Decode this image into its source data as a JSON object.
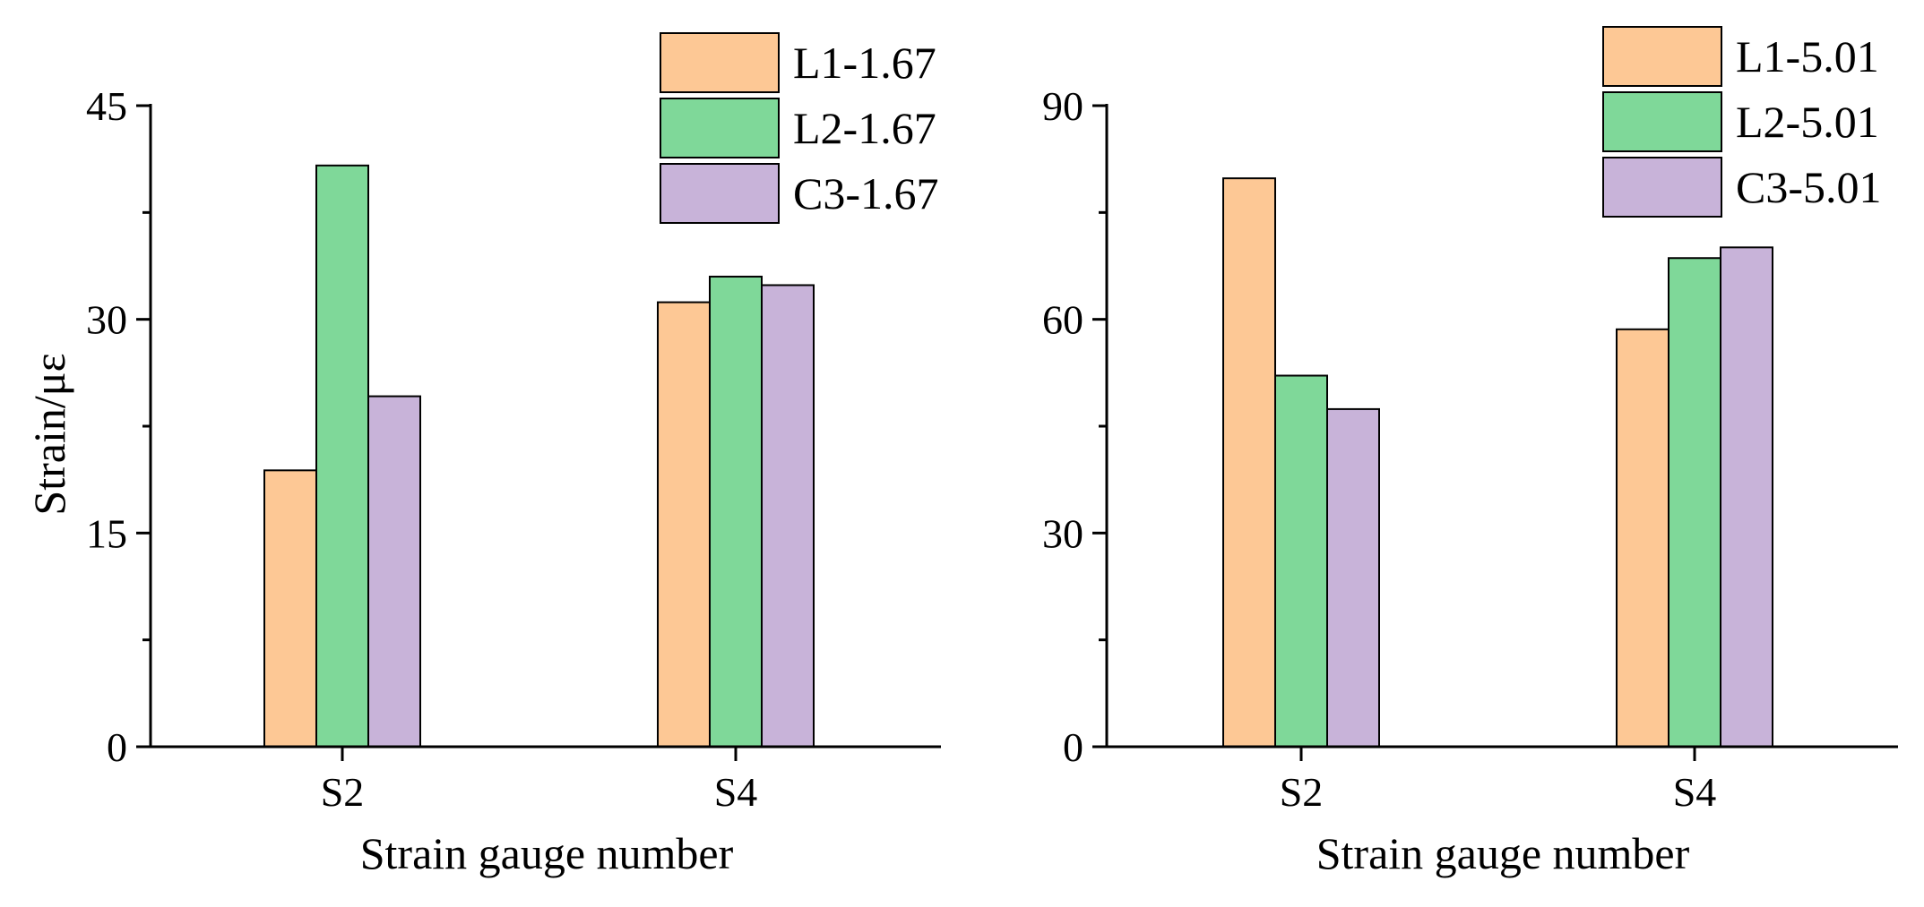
{
  "chart_data": [
    {
      "type": "bar",
      "title": "",
      "xlabel": "Strain gauge number",
      "ylabel": "Strain/με",
      "ylim": [
        0,
        45
      ],
      "yticks": [
        "0",
        "15",
        "30",
        "45"
      ],
      "ytick_values": [
        0,
        15,
        30,
        45
      ],
      "categories": [
        "S2",
        "S4"
      ],
      "legend_position": "top-right",
      "grid": false,
      "series": [
        {
          "name": "L1-1.67",
          "color": "#FDC895",
          "values": [
            19.4,
            31.2
          ]
        },
        {
          "name": "L2-1.67",
          "color": "#7FD899",
          "values": [
            40.8,
            33.0
          ]
        },
        {
          "name": "C3-1.67",
          "color": "#C8B3D9",
          "values": [
            24.6,
            32.4
          ]
        }
      ]
    },
    {
      "type": "bar",
      "title": "",
      "xlabel": "Strain gauge number",
      "ylabel": "",
      "ylim": [
        0,
        90
      ],
      "yticks": [
        "0",
        "30",
        "60",
        "90"
      ],
      "ytick_values": [
        0,
        30,
        60,
        90
      ],
      "categories": [
        "S2",
        "S4"
      ],
      "legend_position": "top-right",
      "grid": false,
      "series": [
        {
          "name": "L1-5.01",
          "color": "#FDC895",
          "values": [
            79.8,
            58.6
          ]
        },
        {
          "name": "L2-5.01",
          "color": "#7FD899",
          "values": [
            52.1,
            68.6
          ]
        },
        {
          "name": "C3-5.01",
          "color": "#C8B3D9",
          "values": [
            47.4,
            70.1
          ]
        }
      ]
    }
  ]
}
